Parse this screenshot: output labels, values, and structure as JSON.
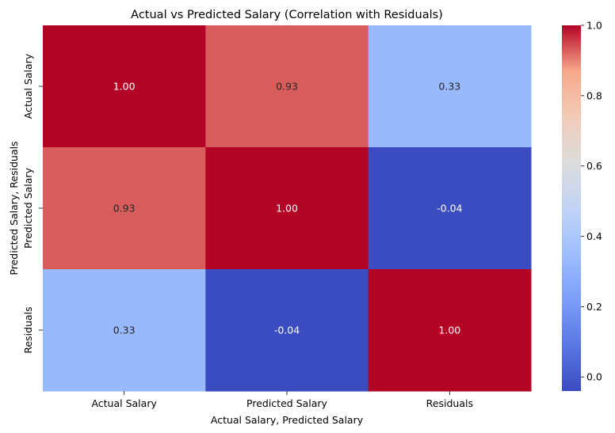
{
  "chart_data": {
    "type": "heatmap",
    "title": "Actual vs Predicted Salary (Correlation with Residuals)",
    "xlabel": "Actual Salary, Predicted Salary",
    "ylabel": "Predicted Salary, Residuals",
    "x_categories": [
      "Actual Salary",
      "Predicted Salary",
      "Residuals"
    ],
    "y_categories": [
      "Actual Salary",
      "Predicted Salary",
      "Residuals"
    ],
    "values": [
      [
        1.0,
        0.93,
        0.33
      ],
      [
        0.93,
        1.0,
        -0.04
      ],
      [
        0.33,
        -0.04,
        1.0
      ]
    ],
    "annotations": [
      [
        "1.00",
        "0.93",
        "0.33"
      ],
      [
        "0.93",
        "1.00",
        "-0.04"
      ],
      [
        "0.33",
        "-0.04",
        "1.00"
      ]
    ],
    "colormap": "coolwarm",
    "vmin": -0.04,
    "vmax": 1.0,
    "colorbar": {
      "ticks": [
        0.0,
        0.2,
        0.4,
        0.6,
        0.8,
        1.0
      ],
      "tick_labels": [
        "0.0",
        "0.2",
        "0.4",
        "0.6",
        "0.8",
        "1.0"
      ]
    }
  }
}
